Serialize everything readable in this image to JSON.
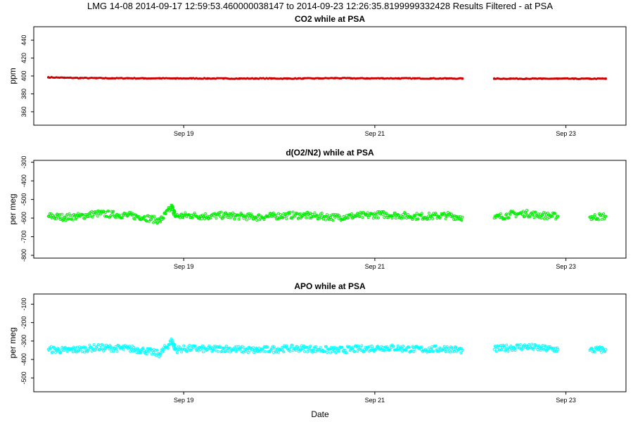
{
  "page_title": "LMG   14-08    2014-09-17 12:59:53.460000038147 to 2014-09-23 12:26:35.8199999332428   Results Filtered - at PSA",
  "xlabel": "Date",
  "x_ticks": [
    "Sep 19",
    "Sep 21",
    "Sep 23"
  ],
  "chart_data": [
    {
      "type": "scatter",
      "title": "CO2 while at PSA",
      "ylabel": "ppm",
      "xlim": [
        "2014-09-17 12:59",
        "2014-09-23 12:26"
      ],
      "ylim": [
        345,
        455
      ],
      "yticks": [
        360,
        380,
        400,
        420,
        440
      ],
      "x_ticks": [
        "Sep 19",
        "Sep 21",
        "Sep 23"
      ],
      "series": [
        {
          "color": "#cc0000",
          "x_days_start": "2014-09-17",
          "points": [
            [
              "2014-09-17 14:00",
              398.5
            ],
            [
              "2014-09-17 18:00",
              398.0
            ],
            [
              "2014-09-17 22:00",
              397.7
            ],
            [
              "2014-09-18 02:00",
              397.6
            ],
            [
              "2014-09-18 06:00",
              397.4
            ],
            [
              "2014-09-18 10:00",
              397.5
            ],
            [
              "2014-09-18 14:00",
              397.3
            ],
            [
              "2014-09-18 18:00",
              397.4
            ],
            [
              "2014-09-18 22:00",
              397.2
            ],
            [
              "2014-09-19 02:00",
              397.3
            ],
            [
              "2014-09-19 06:00",
              397.2
            ],
            [
              "2014-09-19 10:00",
              397.2
            ],
            [
              "2014-09-19 14:00",
              397.1
            ],
            [
              "2014-09-19 18:00",
              397.2
            ],
            [
              "2014-09-19 22:00",
              397.2
            ],
            [
              "2014-09-20 02:00",
              397.1
            ],
            [
              "2014-09-20 06:00",
              397.2
            ],
            [
              "2014-09-20 10:00",
              397.3
            ],
            [
              "2014-09-20 14:00",
              397.6
            ],
            [
              "2014-09-20 18:00",
              397.4
            ],
            [
              "2014-09-20 22:00",
              397.3
            ],
            [
              "2014-09-21 02:00",
              397.4
            ],
            [
              "2014-09-21 06:00",
              397.3
            ],
            [
              "2014-09-21 10:00",
              397.3
            ],
            [
              "2014-09-21 14:00",
              397.2
            ],
            [
              "2014-09-21 18:00",
              397.2
            ],
            [
              "2014-09-21 22:00",
              397.1
            ],
            [
              "2014-09-22 06:00",
              397.0
            ],
            [
              "2014-09-22 10:00",
              397.0
            ],
            [
              "2014-09-22 14:00",
              397.0
            ],
            [
              "2014-09-22 18:00",
              396.9
            ],
            [
              "2014-09-22 22:00",
              397.0
            ],
            [
              "2014-09-23 02:00",
              396.9
            ],
            [
              "2014-09-23 06:00",
              396.9
            ],
            [
              "2014-09-23 10:00",
              397.0
            ]
          ]
        }
      ]
    },
    {
      "type": "scatter",
      "title": "d(O2/N2) while at PSA",
      "ylabel": "per meg",
      "xlim": [
        "2014-09-17 12:59",
        "2014-09-23 12:26"
      ],
      "ylim": [
        -815,
        -290
      ],
      "yticks": [
        -800,
        -700,
        -600,
        -500,
        -400,
        -300
      ],
      "x_ticks": [
        "Sep 19",
        "Sep 21",
        "Sep 23"
      ],
      "series": [
        {
          "color": "#00ee00",
          "x_days_start": "2014-09-17",
          "points": [
            [
              "2014-09-17 14:00",
              -590
            ],
            [
              "2014-09-17 18:00",
              -595
            ],
            [
              "2014-09-17 22:00",
              -590
            ],
            [
              "2014-09-18 02:00",
              -575
            ],
            [
              "2014-09-18 06:00",
              -580
            ],
            [
              "2014-09-18 10:00",
              -585
            ],
            [
              "2014-09-18 14:00",
              -595
            ],
            [
              "2014-09-18 18:00",
              -615
            ],
            [
              "2014-09-18 21:00",
              -540
            ],
            [
              "2014-09-18 22:00",
              -590
            ],
            [
              "2014-09-19 02:00",
              -585
            ],
            [
              "2014-09-19 06:00",
              -590
            ],
            [
              "2014-09-19 10:00",
              -585
            ],
            [
              "2014-09-19 14:00",
              -590
            ],
            [
              "2014-09-19 18:00",
              -595
            ],
            [
              "2014-09-19 22:00",
              -590
            ],
            [
              "2014-09-20 02:00",
              -585
            ],
            [
              "2014-09-20 06:00",
              -585
            ],
            [
              "2014-09-20 10:00",
              -590
            ],
            [
              "2014-09-20 14:00",
              -595
            ],
            [
              "2014-09-20 18:00",
              -590
            ],
            [
              "2014-09-20 22:00",
              -585
            ],
            [
              "2014-09-21 02:00",
              -580
            ],
            [
              "2014-09-21 06:00",
              -585
            ],
            [
              "2014-09-21 10:00",
              -590
            ],
            [
              "2014-09-21 14:00",
              -590
            ],
            [
              "2014-09-21 18:00",
              -585
            ],
            [
              "2014-09-21 22:00",
              -595
            ],
            [
              "2014-09-22 06:00",
              -600
            ],
            [
              "2014-09-22 10:00",
              -580
            ],
            [
              "2014-09-22 14:00",
              -575
            ],
            [
              "2014-09-22 18:00",
              -585
            ],
            [
              "2014-09-22 22:00",
              -590
            ],
            [
              "2014-09-23 06:00",
              -595
            ],
            [
              "2014-09-23 10:00",
              -590
            ]
          ]
        }
      ]
    },
    {
      "type": "scatter",
      "title": "APO while at PSA",
      "ylabel": "per meg",
      "xlim": [
        "2014-09-17 12:59",
        "2014-09-23 12:26"
      ],
      "ylim": [
        -575,
        -45
      ],
      "yticks": [
        -500,
        -400,
        -300,
        -200,
        -100
      ],
      "x_ticks": [
        "Sep 19",
        "Sep 21",
        "Sep 23"
      ],
      "series": [
        {
          "color": "#00ffff",
          "x_days_start": "2014-09-17",
          "points": [
            [
              "2014-09-17 14:00",
              -345
            ],
            [
              "2014-09-17 18:00",
              -350
            ],
            [
              "2014-09-17 22:00",
              -345
            ],
            [
              "2014-09-18 02:00",
              -335
            ],
            [
              "2014-09-18 06:00",
              -338
            ],
            [
              "2014-09-18 10:00",
              -340
            ],
            [
              "2014-09-18 14:00",
              -350
            ],
            [
              "2014-09-18 18:00",
              -370
            ],
            [
              "2014-09-18 21:00",
              -300
            ],
            [
              "2014-09-18 22:00",
              -345
            ],
            [
              "2014-09-19 02:00",
              -340
            ],
            [
              "2014-09-19 06:00",
              -345
            ],
            [
              "2014-09-19 10:00",
              -340
            ],
            [
              "2014-09-19 14:00",
              -345
            ],
            [
              "2014-09-19 18:00",
              -350
            ],
            [
              "2014-09-19 22:00",
              -345
            ],
            [
              "2014-09-20 02:00",
              -340
            ],
            [
              "2014-09-20 06:00",
              -340
            ],
            [
              "2014-09-20 10:00",
              -345
            ],
            [
              "2014-09-20 14:00",
              -350
            ],
            [
              "2014-09-20 18:00",
              -345
            ],
            [
              "2014-09-20 22:00",
              -340
            ],
            [
              "2014-09-21 02:00",
              -335
            ],
            [
              "2014-09-21 06:00",
              -338
            ],
            [
              "2014-09-21 10:00",
              -345
            ],
            [
              "2014-09-21 14:00",
              -345
            ],
            [
              "2014-09-21 18:00",
              -340
            ],
            [
              "2014-09-21 22:00",
              -350
            ],
            [
              "2014-09-22 06:00",
              -345
            ],
            [
              "2014-09-22 10:00",
              -335
            ],
            [
              "2014-09-22 14:00",
              -330
            ],
            [
              "2014-09-22 18:00",
              -340
            ],
            [
              "2014-09-22 22:00",
              -345
            ],
            [
              "2014-09-23 06:00",
              -350
            ],
            [
              "2014-09-23 10:00",
              -345
            ]
          ]
        }
      ]
    }
  ]
}
